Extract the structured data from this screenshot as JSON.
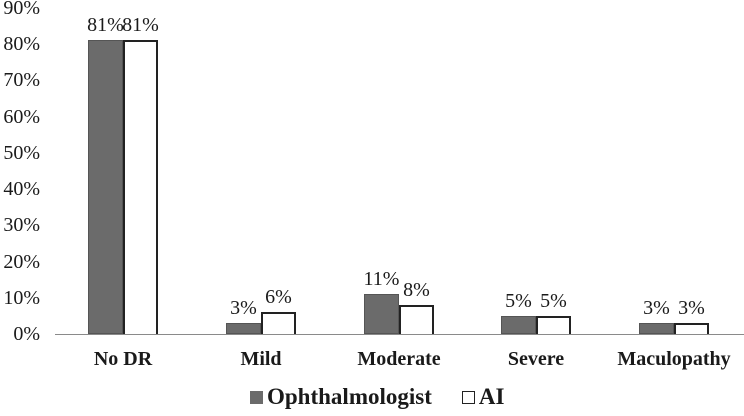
{
  "chart_data": {
    "type": "bar",
    "title": "",
    "xlabel": "",
    "ylabel": "",
    "ylim": [
      0,
      90
    ],
    "yticks": [
      "0%",
      "10%",
      "20%",
      "30%",
      "40%",
      "50%",
      "60%",
      "70%",
      "80%",
      "90%"
    ],
    "categories": [
      "No DR",
      "Mild",
      "Moderate",
      "Severe",
      "Maculopathy"
    ],
    "series": [
      {
        "name": "Ophthalmologist",
        "values": [
          81,
          3,
          11,
          5,
          3
        ],
        "labels": [
          "81%",
          "3%",
          "11%",
          "5%",
          "3%"
        ],
        "color": "#6b6b6b"
      },
      {
        "name": "AI",
        "values": [
          81,
          6,
          8,
          5,
          3
        ],
        "labels": [
          "81%",
          "6%",
          "8%",
          "5%",
          "3%"
        ],
        "color": "#ffffff"
      }
    ],
    "grid": false,
    "legend_position": "bottom"
  },
  "legend": {
    "items": [
      {
        "label": "Ophthalmologist"
      },
      {
        "label": "AI"
      }
    ]
  }
}
